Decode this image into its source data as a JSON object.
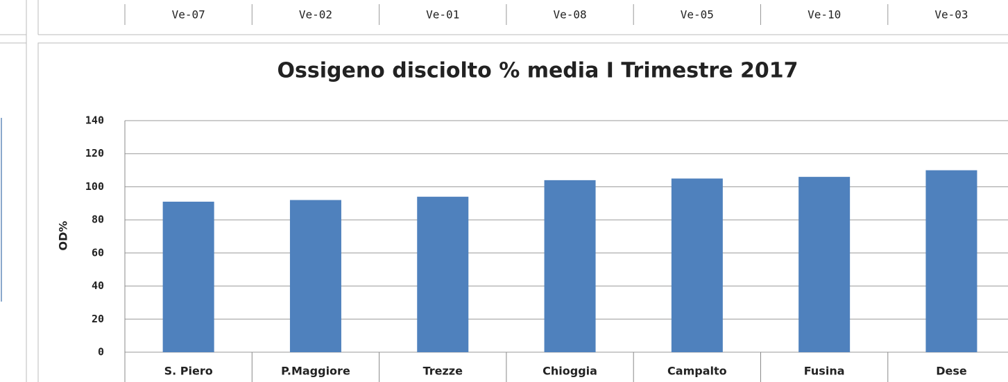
{
  "station_codes": [
    "Ve-07",
    "Ve-02",
    "Ve-01",
    "Ve-08",
    "Ve-05",
    "Ve-10",
    "Ve-03"
  ],
  "chart_data": {
    "type": "bar",
    "title": "Ossigeno disciolto %  media I Trimestre 2017",
    "y_label": "OD%",
    "categories": [
      "S. Piero",
      "P.Maggiore",
      "Trezze",
      "Chioggia",
      "Campalto",
      "Fusina",
      "Dese"
    ],
    "values": [
      91,
      92,
      94,
      104,
      105,
      106,
      110
    ],
    "color": "#4f81bd",
    "ylim": [
      0,
      140
    ],
    "yticks": [
      0,
      20,
      40,
      60,
      80,
      100,
      120,
      140
    ],
    "grid": true
  }
}
